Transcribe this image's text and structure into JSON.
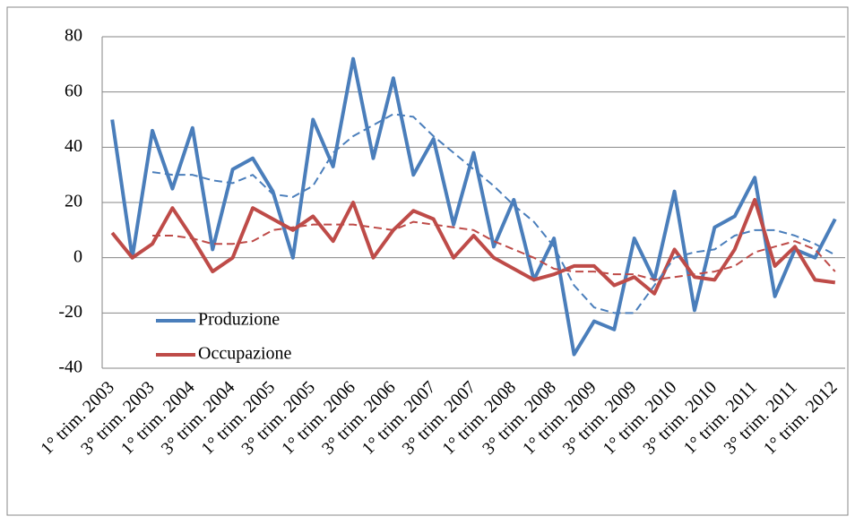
{
  "chart_data": {
    "type": "line",
    "categories": [
      "1° trim. 2003",
      null,
      "3° trim. 2003",
      null,
      "1° trim. 2004",
      null,
      "3° trim. 2004",
      null,
      "1° trim. 2005",
      null,
      "3° trim. 2005",
      null,
      "1° trim. 2006",
      null,
      "3° trim. 2006",
      null,
      "1° trim. 2007",
      null,
      "3° trim. 2007",
      null,
      "1° trim. 2008",
      null,
      "3° trim. 2008",
      null,
      "1° trim. 2009",
      null,
      "3° trim. 2009",
      null,
      "1° trim. 2010",
      null,
      "3° trim. 2010",
      null,
      "1° trim. 2011",
      null,
      "3° trim. 2011",
      null,
      "1° trim. 2012"
    ],
    "series": [
      {
        "name": "Produzione",
        "color": "#4a7ebb",
        "values": [
          50,
          0,
          46,
          25,
          47,
          3,
          32,
          36,
          24,
          0,
          50,
          33,
          72,
          36,
          65,
          30,
          43,
          12,
          38,
          4,
          21,
          -8,
          7,
          -35,
          -23,
          -26,
          7,
          -8,
          24,
          -19,
          11,
          15,
          29,
          -14,
          3,
          0,
          14
        ]
      },
      {
        "name": "Occupazione",
        "color": "#be4b48",
        "values": [
          9,
          0,
          5,
          18,
          7,
          -5,
          0,
          18,
          14,
          10,
          15,
          6,
          20,
          0,
          10,
          17,
          14,
          0,
          8,
          0,
          -4,
          -8,
          -6,
          -3,
          -3,
          -10,
          -7,
          -13,
          3,
          -7,
          -8,
          3,
          21,
          -3,
          4,
          -8,
          -9
        ]
      },
      {
        "color": "#4a7ebb",
        "dashed": true,
        "values": [
          null,
          null,
          31,
          30,
          30,
          28,
          27,
          30,
          23,
          22,
          26,
          38,
          44,
          48,
          52,
          51,
          44,
          38,
          32,
          26,
          19,
          13,
          4,
          -10,
          -18,
          -20,
          -20,
          -10,
          0,
          2,
          3,
          8,
          10,
          10,
          8,
          5,
          1
        ]
      },
      {
        "color": "#be4b48",
        "dashed": true,
        "values": [
          null,
          null,
          8,
          8,
          7,
          5,
          5,
          6,
          10,
          11,
          12,
          12,
          12,
          11,
          10,
          13,
          12,
          11,
          10,
          6,
          3,
          0,
          -4,
          -5,
          -5,
          -6,
          -6,
          -8,
          -7,
          -6,
          -5,
          -3,
          2,
          4,
          6,
          3,
          -5
        ]
      }
    ],
    "ylim": [
      -40,
      80
    ],
    "yticks": [
      -40,
      -20,
      0,
      20,
      40,
      60,
      80
    ],
    "grid": true,
    "legend": "lower-left"
  }
}
